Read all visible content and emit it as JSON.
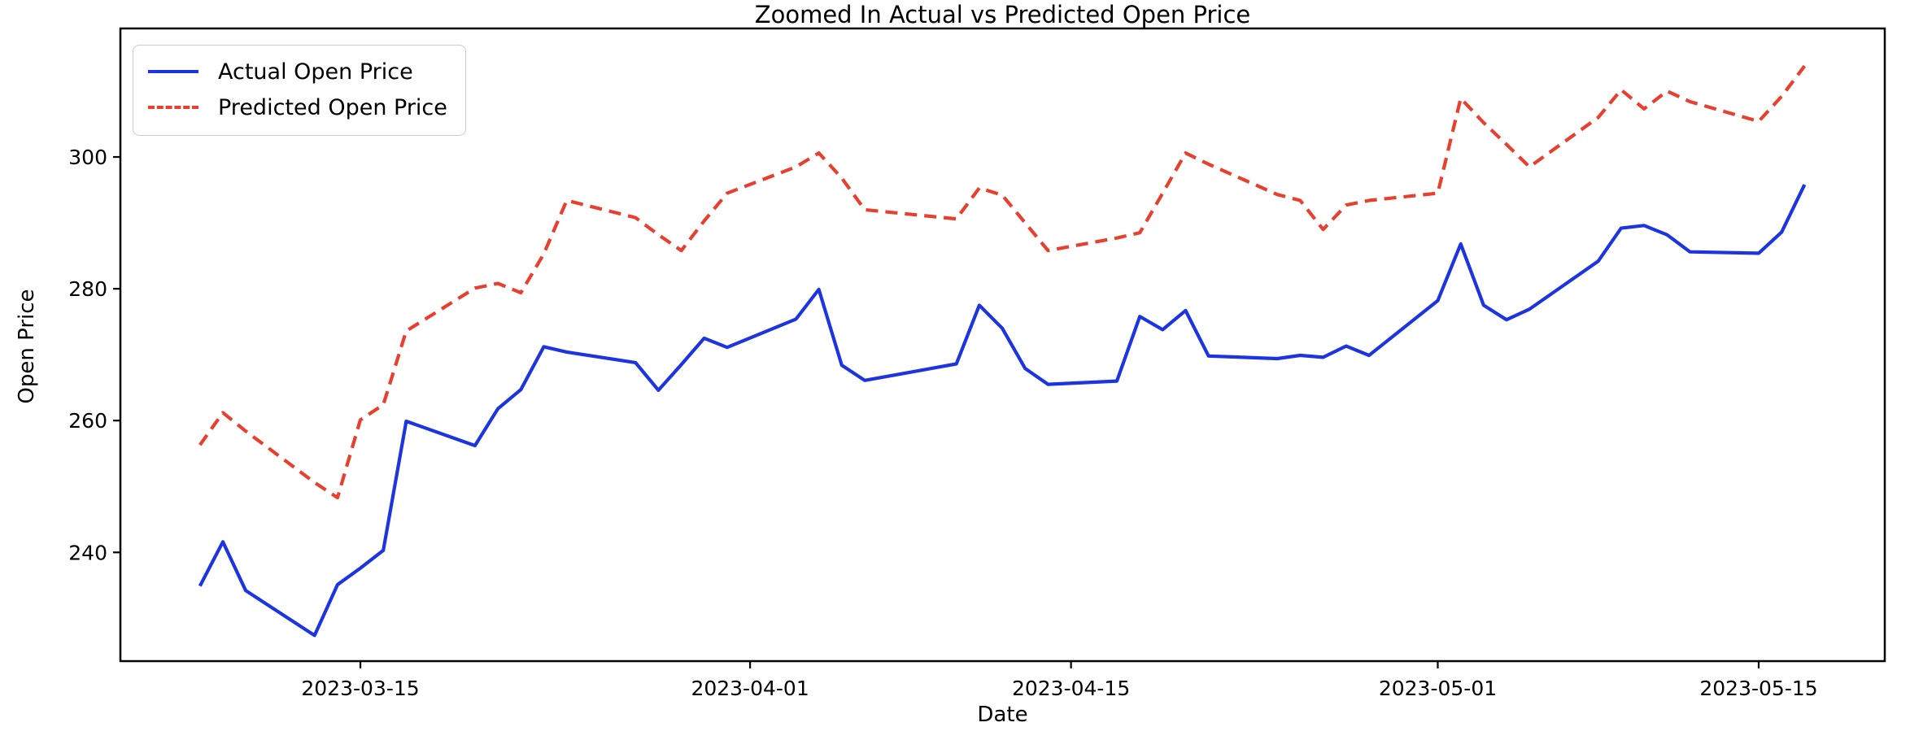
{
  "figure": {
    "title": "Zoomed In Actual vs Predicted Open Price",
    "background_color": "#ffffff",
    "spine_color": "#000000"
  },
  "legend": {
    "entries": [
      {
        "label": "Actual Open Price",
        "color": "#1c35e0",
        "style": "solid"
      },
      {
        "label": "Predicted Open Price",
        "color": "#e8402f",
        "style": "dashed"
      }
    ],
    "position": "upper left"
  },
  "chart_data": {
    "type": "line",
    "title": "Zoomed In Actual vs Predicted Open Price",
    "xlabel": "Date",
    "ylabel": "Open Price",
    "grid": false,
    "legend_position": "upper left",
    "x": [
      "2023-03-08",
      "2023-03-09",
      "2023-03-10",
      "2023-03-13",
      "2023-03-14",
      "2023-03-15",
      "2023-03-16",
      "2023-03-17",
      "2023-03-20",
      "2023-03-21",
      "2023-03-22",
      "2023-03-23",
      "2023-03-24",
      "2023-03-27",
      "2023-03-28",
      "2023-03-29",
      "2023-03-30",
      "2023-03-31",
      "2023-04-03",
      "2023-04-04",
      "2023-04-05",
      "2023-04-06",
      "2023-04-10",
      "2023-04-11",
      "2023-04-12",
      "2023-04-13",
      "2023-04-14",
      "2023-04-17",
      "2023-04-18",
      "2023-04-19",
      "2023-04-20",
      "2023-04-21",
      "2023-04-24",
      "2023-04-25",
      "2023-04-26",
      "2023-04-27",
      "2023-04-28",
      "2023-05-01",
      "2023-05-02",
      "2023-05-03",
      "2023-05-04",
      "2023-05-05",
      "2023-05-08",
      "2023-05-09",
      "2023-05-10",
      "2023-05-11",
      "2023-05-12",
      "2023-05-15",
      "2023-05-16",
      "2023-05-17"
    ],
    "series": [
      {
        "name": "Actual Open Price",
        "color": "#1c35e0",
        "style": "solid",
        "values": [
          234.9,
          241.6,
          234.2,
          227.4,
          235.1,
          237.6,
          240.3,
          259.9,
          256.2,
          261.8,
          264.7,
          271.2,
          270.4,
          268.8,
          264.6,
          268.5,
          272.5,
          271.1,
          275.4,
          279.9,
          268.4,
          266.1,
          268.6,
          277.5,
          274.0,
          267.9,
          265.5,
          266.0,
          275.8,
          273.8,
          276.7,
          269.8,
          269.4,
          269.9,
          269.6,
          271.3,
          269.9,
          278.2,
          286.8,
          277.5,
          275.3,
          276.9,
          284.2,
          289.2,
          289.6,
          288.2,
          285.6,
          285.4,
          288.6,
          295.8
        ]
      },
      {
        "name": "Predicted Open Price",
        "color": "#e8402f",
        "style": "dashed",
        "values": [
          256.3,
          261.2,
          258.4,
          250.6,
          248.3,
          260.1,
          262.4,
          273.6,
          280.1,
          280.8,
          279.4,
          285.3,
          293.4,
          290.8,
          288.2,
          285.8,
          290.3,
          294.5,
          298.5,
          300.6,
          296.8,
          292.0,
          290.6,
          295.3,
          294.2,
          290.0,
          285.8,
          287.7,
          288.5,
          294.5,
          300.6,
          298.9,
          294.3,
          293.4,
          289.0,
          292.7,
          293.4,
          294.5,
          308.9,
          305.2,
          301.9,
          298.5,
          306.0,
          310.2,
          307.3,
          310.0,
          308.4,
          305.4,
          309.2,
          313.8
        ]
      }
    ],
    "x_ticks": [
      "2023-03-15",
      "2023-04-01",
      "2023-04-15",
      "2023-05-01",
      "2023-05-15"
    ],
    "y_ticks": [
      240,
      260,
      280,
      300
    ],
    "ylim": [
      223.5,
      319.5
    ],
    "x_origin_date": "2023-03-15",
    "xlim_days": [
      -10.47,
      66.5
    ]
  }
}
